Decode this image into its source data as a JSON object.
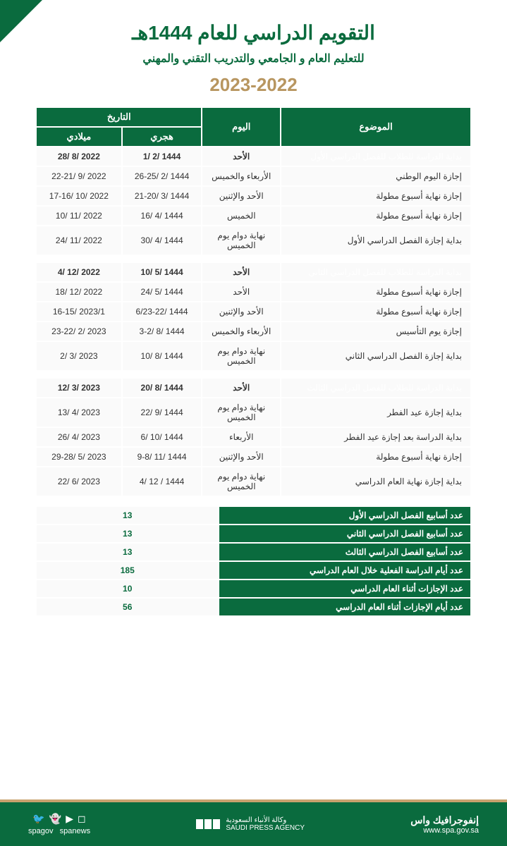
{
  "colors": {
    "primary_green": "#0a6b3e",
    "accent_gold": "#c9a26e",
    "row_alt_bg": "#f0f0f0",
    "row_bg": "#fafafa",
    "text_dark": "#333333",
    "white": "#ffffff"
  },
  "header": {
    "title": "التقويم الدراسي للعام 1444هـ",
    "subtitle": "للتعليم العام و الجامعي والتدريب التقني والمهني",
    "year": "2023-2022"
  },
  "table_headers": {
    "subject": "الموضوع",
    "day": "اليوم",
    "date": "التاريخ",
    "hijri": "هجري",
    "gregorian": "ميلادي"
  },
  "sections": [
    {
      "highlight_row": {
        "subject": "بداية الدراسة للطلاب للفصل الدراسي الأول",
        "day": "الأحد",
        "hijri": "1444 /2 /1",
        "gregorian": "2022 /8 /28"
      },
      "rows": [
        {
          "subject": "إجازة اليوم الوطني",
          "day": "الأربعاء والخميس",
          "hijri": "1444 /2 /26-25",
          "gregorian": "2022 /9 /22-21"
        },
        {
          "subject": "إجازة نهاية أسبوع مطولة",
          "day": "الأحد والإثنين",
          "hijri": "1444 /3 /21-20",
          "gregorian": "2022 /10 /17-16"
        },
        {
          "subject": "إجازة نهاية أسبوع مطولة",
          "day": "الخميس",
          "hijri": "1444 /4 /16",
          "gregorian": "2022 /11 /10"
        },
        {
          "subject": "بداية إجازة الفصل الدراسي الأول",
          "day": "نهاية دوام يوم الخميس",
          "hijri": "1444 /4 /30",
          "gregorian": "2022 /11 /24"
        }
      ]
    },
    {
      "highlight_row": {
        "subject": "بداية الدراسة للطلاب للفصل الدراسي الثاني",
        "day": "الأحد",
        "hijri": "1444 /5 /10",
        "gregorian": "2022 /12 /4"
      },
      "rows": [
        {
          "subject": "إجازة نهاية أسبوع مطولة",
          "day": "الأحد",
          "hijri": "1444 /5 /24",
          "gregorian": "2022 /12 /18"
        },
        {
          "subject": "إجازة نهاية أسبوع مطولة",
          "day": "الأحد والإثنين",
          "hijri": "1444 /6/23-22",
          "gregorian": "2023/1 /16-15"
        },
        {
          "subject": "إجازة يوم التأسيس",
          "day": "الأربعاء والخميس",
          "hijri": "1444 /8 /3-2",
          "gregorian": "2023 /2 /23-22"
        },
        {
          "subject": "بداية إجازة الفصل الدراسي الثاني",
          "day": "نهاية دوام يوم الخميس",
          "hijri": "1444 /8 /10",
          "gregorian": "2023 /3 /2"
        }
      ]
    },
    {
      "highlight_row": {
        "subject": "بداية الدراسة للطلاب للفصل الدراسي الثالث",
        "day": "الأحد",
        "hijri": "1444 /8 /20",
        "gregorian": "2023 /3 /12"
      },
      "rows": [
        {
          "subject": "بداية إجازة عيد الفطر",
          "day": "نهاية دوام يوم الخميس",
          "hijri": "1444 /9 /22",
          "gregorian": "2023 /4 /13"
        },
        {
          "subject": "بداية الدراسة بعد إجازة عيد الفطر",
          "day": "الأربعاء",
          "hijri": "1444 /10 /6",
          "gregorian": "2023 /4 /26"
        },
        {
          "subject": "إجازة نهاية أسبوع مطولة",
          "day": "الأحد والإثنين",
          "hijri": "1444 /11 /9-8",
          "gregorian": "2023 /5 /29-28"
        },
        {
          "subject": "بداية إجازة نهاية العام الدراسي",
          "day": "نهاية دوام يوم الخميس",
          "hijri": "1444 / 12 /4",
          "gregorian": "2023 /6 /22"
        }
      ]
    }
  ],
  "summary": [
    {
      "label": "عدد أسابيع الفصل الدراسي الأول",
      "value": "13"
    },
    {
      "label": "عدد أسابيع الفصل الدراسي الثاني",
      "value": "13"
    },
    {
      "label": "عدد أسابيع الفصل الدراسي الثالث",
      "value": "13"
    },
    {
      "label": "عدد أيام الدراسة الفعلية خلال العام الدراسي",
      "value": "185"
    },
    {
      "label": "عدد الإجازات أثناء العام الدراسي",
      "value": "10"
    },
    {
      "label": "عدد أيام الإجازات أثناء العام الدراسي",
      "value": "56"
    }
  ],
  "footer": {
    "brand_ar": "إنفوجرافيك واس",
    "url": "www.spa.gov.sa",
    "agency_ar": "وكالة الأنباء السعودية",
    "agency_en": "SAUDI PRESS AGENCY",
    "social1": "spagov",
    "social2": "spanews"
  }
}
